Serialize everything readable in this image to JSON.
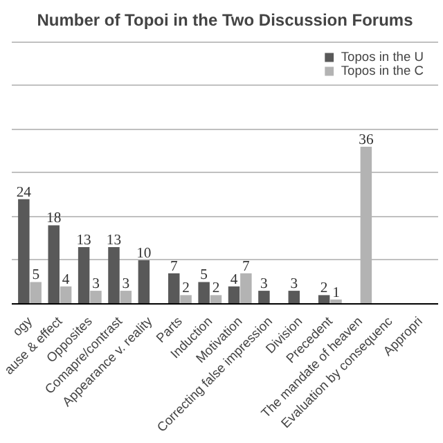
{
  "chart_data": {
    "type": "bar",
    "title": "Number of Topoi in the Two Discussion Forums",
    "categories": [
      "ogy",
      "ause & effect",
      "Opposites",
      "Comapre/contrast",
      "Appearance v. reality",
      "Parts",
      "Induction",
      "Motivation",
      "Correcting false impression",
      "Division",
      "Precedent",
      "The mandate of heaven",
      "Evaluation by consequenc",
      "Appropri"
    ],
    "series": [
      {
        "name": "Topos in the U",
        "color": "#595959",
        "values": [
          24,
          18,
          13,
          13,
          10,
          7,
          5,
          4,
          3,
          3,
          2,
          null,
          null,
          null
        ]
      },
      {
        "name": "Topos in the C",
        "color": "#b3b3b3",
        "values": [
          5,
          4,
          3,
          3,
          null,
          2,
          2,
          7,
          null,
          null,
          1,
          36,
          null,
          null
        ]
      }
    ],
    "tick_labels": "x",
    "grid": "y",
    "legend": "top right",
    "data_labels": true
  }
}
